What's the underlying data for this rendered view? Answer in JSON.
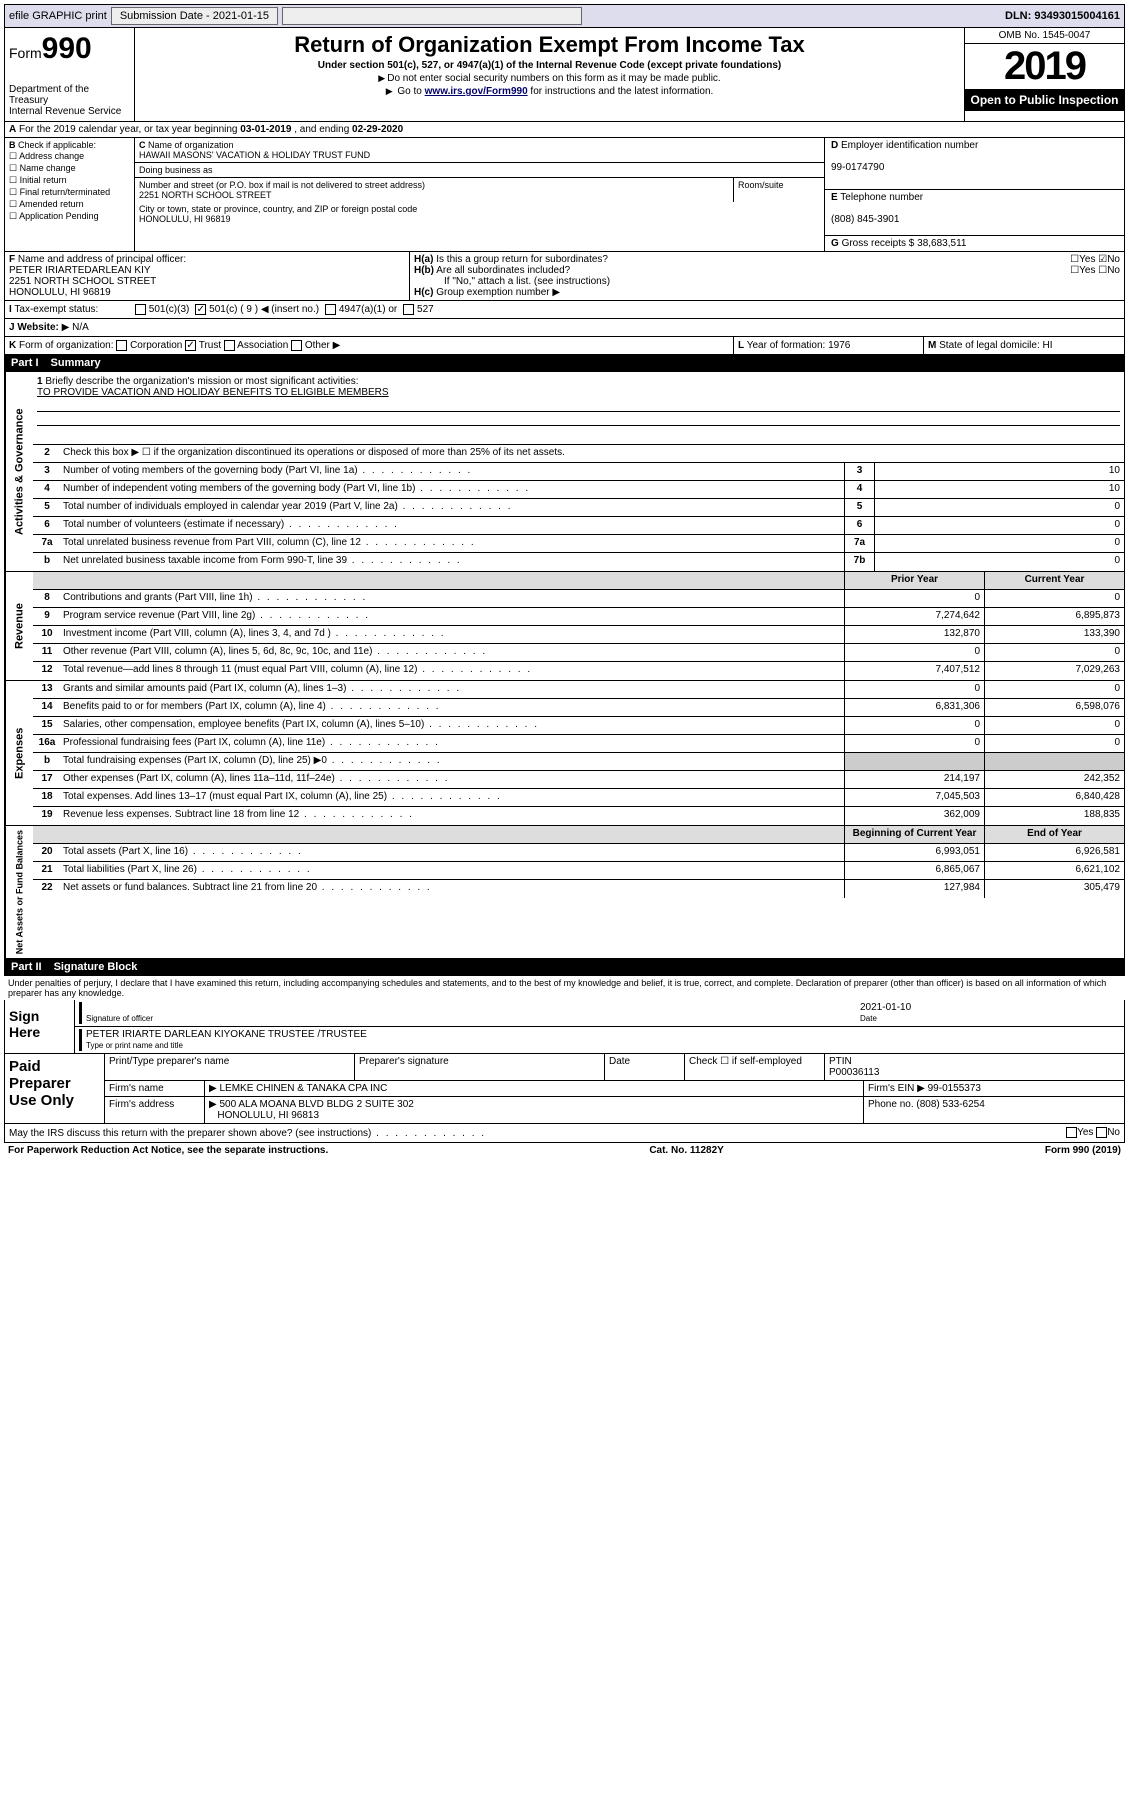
{
  "topbar": {
    "efile": "efile GRAPHIC print",
    "submission_label": "Submission Date - 2021-01-15",
    "dln": "DLN: 93493015004161"
  },
  "header": {
    "form_label": "Form",
    "form_number": "990",
    "dept": "Department of the Treasury",
    "irs": "Internal Revenue Service",
    "title": "Return of Organization Exempt From Income Tax",
    "subtitle": "Under section 501(c), 527, or 4947(a)(1) of the Internal Revenue Code (except private foundations)",
    "inst1": "Do not enter social security numbers on this form as it may be made public.",
    "inst2_pre": "Go to ",
    "inst2_link": "www.irs.gov/Form990",
    "inst2_post": " for instructions and the latest information.",
    "omb": "OMB No. 1545-0047",
    "year": "2019",
    "open": "Open to Public Inspection"
  },
  "period": {
    "text_pre": "For the 2019 calendar year, or tax year beginning ",
    "begin": "03-01-2019",
    "mid": " , and ending ",
    "end": "02-29-2020"
  },
  "B": {
    "label": "Check if applicable:",
    "items": [
      "Address change",
      "Name change",
      "Initial return",
      "Final return/terminated",
      "Amended return",
      "Application Pending"
    ]
  },
  "C": {
    "name_label": "Name of organization",
    "name": "HAWAII MASONS' VACATION & HOLIDAY TRUST FUND",
    "dba_label": "Doing business as",
    "street_label": "Number and street (or P.O. box if mail is not delivered to street address)",
    "room_label": "Room/suite",
    "street": "2251 NORTH SCHOOL STREET",
    "city_label": "City or town, state or province, country, and ZIP or foreign postal code",
    "city": "HONOLULU, HI  96819"
  },
  "D": {
    "label": "Employer identification number",
    "ein": "99-0174790"
  },
  "E": {
    "label": "Telephone number",
    "tel": "(808) 845-3901"
  },
  "G": {
    "label": "Gross receipts $",
    "val": "38,683,511"
  },
  "F": {
    "label": "Name and address of principal officer:",
    "name": "PETER IRIARTEDARLEAN KIY",
    "street": "2251 NORTH SCHOOL STREET",
    "city": "HONOLULU, HI  96819"
  },
  "H": {
    "a_label": "Is this a group return for subordinates?",
    "a_yes": "Yes",
    "a_no": "No",
    "a_checked": "No",
    "b_label": "Are all subordinates included?",
    "b_note": "If \"No,\" attach a list. (see instructions)",
    "c_label": "Group exemption number"
  },
  "I": {
    "label": "Tax-exempt status:",
    "opts": [
      "501(c)(3)",
      "501(c) ( 9 ) ◀ (insert no.)",
      "4947(a)(1) or",
      "527"
    ],
    "checked_index": 1
  },
  "J": {
    "label": "Website:",
    "val": "N/A"
  },
  "K": {
    "label": "Form of organization:",
    "opts": [
      "Corporation",
      "Trust",
      "Association",
      "Other"
    ],
    "checked": "Trust"
  },
  "L": {
    "label": "Year of formation:",
    "val": "1976"
  },
  "M": {
    "label": "State of legal domicile:",
    "val": "HI"
  },
  "partI": {
    "label": "Part I",
    "title": "Summary"
  },
  "mission": {
    "q1": "Briefly describe the organization's mission or most significant activities:",
    "text": "TO PROVIDE VACATION AND HOLIDAY BENEFITS TO ELIGIBLE MEMBERS"
  },
  "governance": {
    "label": "Activities & Governance",
    "rows": [
      {
        "num": "2",
        "desc": "Check this box ▶ ☐ if the organization discontinued its operations or disposed of more than 25% of its net assets."
      },
      {
        "num": "3",
        "desc": "Number of voting members of the governing body (Part VI, line 1a)",
        "box": "3",
        "val": "10"
      },
      {
        "num": "4",
        "desc": "Number of independent voting members of the governing body (Part VI, line 1b)",
        "box": "4",
        "val": "10"
      },
      {
        "num": "5",
        "desc": "Total number of individuals employed in calendar year 2019 (Part V, line 2a)",
        "box": "5",
        "val": "0"
      },
      {
        "num": "6",
        "desc": "Total number of volunteers (estimate if necessary)",
        "box": "6",
        "val": "0"
      },
      {
        "num": "7a",
        "desc": "Total unrelated business revenue from Part VIII, column (C), line 12",
        "box": "7a",
        "val": "0"
      },
      {
        "num": "b",
        "desc": "Net unrelated business taxable income from Form 990-T, line 39",
        "box": "7b",
        "val": "0"
      }
    ]
  },
  "revenue": {
    "label": "Revenue",
    "head_prior": "Prior Year",
    "head_current": "Current Year",
    "rows": [
      {
        "num": "8",
        "desc": "Contributions and grants (Part VIII, line 1h)",
        "prior": "0",
        "curr": "0"
      },
      {
        "num": "9",
        "desc": "Program service revenue (Part VIII, line 2g)",
        "prior": "7,274,642",
        "curr": "6,895,873"
      },
      {
        "num": "10",
        "desc": "Investment income (Part VIII, column (A), lines 3, 4, and 7d )",
        "prior": "132,870",
        "curr": "133,390"
      },
      {
        "num": "11",
        "desc": "Other revenue (Part VIII, column (A), lines 5, 6d, 8c, 9c, 10c, and 11e)",
        "prior": "0",
        "curr": "0"
      },
      {
        "num": "12",
        "desc": "Total revenue—add lines 8 through 11 (must equal Part VIII, column (A), line 12)",
        "prior": "7,407,512",
        "curr": "7,029,263"
      }
    ]
  },
  "expenses": {
    "label": "Expenses",
    "rows": [
      {
        "num": "13",
        "desc": "Grants and similar amounts paid (Part IX, column (A), lines 1–3)",
        "prior": "0",
        "curr": "0"
      },
      {
        "num": "14",
        "desc": "Benefits paid to or for members (Part IX, column (A), line 4)",
        "prior": "6,831,306",
        "curr": "6,598,076"
      },
      {
        "num": "15",
        "desc": "Salaries, other compensation, employee benefits (Part IX, column (A), lines 5–10)",
        "prior": "0",
        "curr": "0"
      },
      {
        "num": "16a",
        "desc": "Professional fundraising fees (Part IX, column (A), line 11e)",
        "prior": "0",
        "curr": "0"
      },
      {
        "num": "b",
        "desc": "Total fundraising expenses (Part IX, column (D), line 25) ▶0",
        "prior": "",
        "curr": "",
        "shade": true
      },
      {
        "num": "17",
        "desc": "Other expenses (Part IX, column (A), lines 11a–11d, 11f–24e)",
        "prior": "214,197",
        "curr": "242,352"
      },
      {
        "num": "18",
        "desc": "Total expenses. Add lines 13–17 (must equal Part IX, column (A), line 25)",
        "prior": "7,045,503",
        "curr": "6,840,428"
      },
      {
        "num": "19",
        "desc": "Revenue less expenses. Subtract line 18 from line 12",
        "prior": "362,009",
        "curr": "188,835"
      }
    ]
  },
  "netassets": {
    "label": "Net Assets or Fund Balances",
    "head_begin": "Beginning of Current Year",
    "head_end": "End of Year",
    "rows": [
      {
        "num": "20",
        "desc": "Total assets (Part X, line 16)",
        "prior": "6,993,051",
        "curr": "6,926,581"
      },
      {
        "num": "21",
        "desc": "Total liabilities (Part X, line 26)",
        "prior": "6,865,067",
        "curr": "6,621,102"
      },
      {
        "num": "22",
        "desc": "Net assets or fund balances. Subtract line 21 from line 20",
        "prior": "127,984",
        "curr": "305,479"
      }
    ]
  },
  "partII": {
    "label": "Part II",
    "title": "Signature Block"
  },
  "penalties": "Under penalties of perjury, I declare that I have examined this return, including accompanying schedules and statements, and to the best of my knowledge and belief, it is true, correct, and complete. Declaration of preparer (other than officer) is based on all information of which preparer has any knowledge.",
  "sign": {
    "here": "Sign Here",
    "sig_label": "Signature of officer",
    "date_label": "Date",
    "date": "2021-01-10",
    "name": "PETER IRIARTE DARLEAN KIYOKANE  TRUSTEE /TRUSTEE",
    "name_label": "Type or print name and title"
  },
  "paid": {
    "title": "Paid Preparer Use Only",
    "cols": [
      "Print/Type preparer's name",
      "Preparer's signature",
      "Date"
    ],
    "check_label": "Check ☐ if self-employed",
    "ptin_label": "PTIN",
    "ptin": "P00036113",
    "firm_name_label": "Firm's name",
    "firm_name": "LEMKE CHINEN & TANAKA CPA INC",
    "firm_ein_label": "Firm's EIN",
    "firm_ein": "99-0155373",
    "firm_addr_label": "Firm's address",
    "firm_addr": "500 ALA MOANA BLVD BLDG 2 SUITE 302",
    "firm_city": "HONOLULU, HI  96813",
    "phone_label": "Phone no.",
    "phone": "(808) 533-6254"
  },
  "discuss": {
    "q": "May the IRS discuss this return with the preparer shown above? (see instructions)",
    "yes": "Yes",
    "no": "No"
  },
  "footer": {
    "left": "For Paperwork Reduction Act Notice, see the separate instructions.",
    "mid": "Cat. No. 11282Y",
    "right": "Form 990 (2019)"
  },
  "colors": {
    "topbar_bg": "#d8dce8",
    "black": "#000000",
    "link": "#003366"
  }
}
